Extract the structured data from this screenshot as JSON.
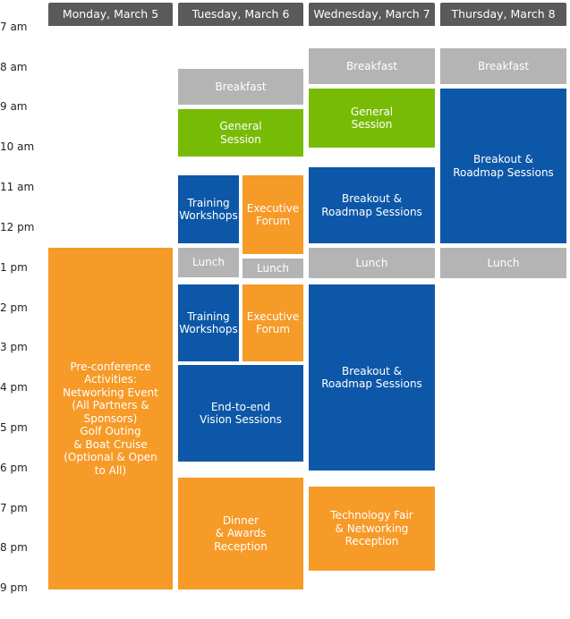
{
  "days": [
    "Monday, March 5",
    "Tuesday, March 6",
    "Wednesday, March 7",
    "Thursday, March 8"
  ],
  "times": [
    "7 am",
    "8 am",
    "9 am",
    "10 am",
    "11 am",
    "12 pm",
    "1 pm",
    "2 pm",
    "3 pm",
    "4 pm",
    "5 pm",
    "6 pm",
    "7 pm",
    "8 pm",
    "9 pm"
  ],
  "blocks": {
    "mon_preconf": "Pre-conference\nActivities:\nNetworking Event\n(All Partners &\nSponsors)\nGolf Outing\n& Boat Cruise\n(Optional & Open\nto All)",
    "tue_breakfast": "Breakfast",
    "tue_general": "General\nSession",
    "tue_training_am": "Training\nWorkshops",
    "tue_exec_am": "Executive\nForum",
    "tue_lunch_a": "Lunch",
    "tue_lunch_b": "Lunch",
    "tue_training_pm": "Training\nWorkshops",
    "tue_exec_pm": "Executive\nForum",
    "tue_e2e": "End-to-end\nVision Sessions",
    "tue_dinner": "Dinner\n& Awards\nReception",
    "wed_breakfast": "Breakfast",
    "wed_general": "General\nSession",
    "wed_breakout_am": "Breakout &\nRoadmap Sessions",
    "wed_lunch": "Lunch",
    "wed_breakout_pm": "Breakout &\nRoadmap Sessions",
    "wed_techfair": "Technology Fair\n& Networking\nReception",
    "thu_breakfast": "Breakfast",
    "thu_breakout": "Breakout &\nRoadmap Sessions",
    "thu_lunch": "Lunch"
  },
  "colors": {
    "header": "#5a5a5a",
    "meal": "#b4b4b4",
    "general": "#78bb06",
    "session": "#0d57a8",
    "special": "#f69a28"
  }
}
